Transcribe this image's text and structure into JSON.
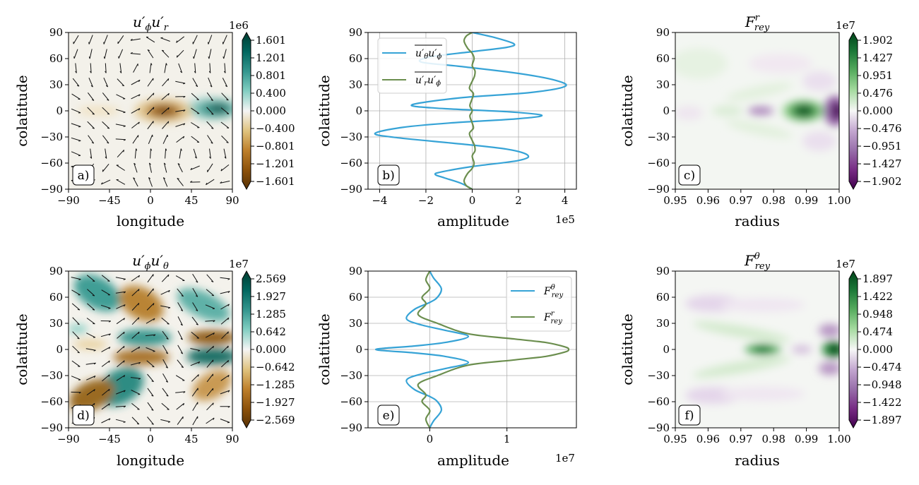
{
  "chart_data": [
    {
      "id": "a",
      "type": "heatmap",
      "panel_label": "a)",
      "title_main": "u′",
      "title_sub1": "ϕ",
      "title_mid": "u′",
      "title_sub2": "r",
      "xlabel": "longitude",
      "ylabel": "colatitude",
      "xlim": [
        -90,
        90
      ],
      "ylim": [
        -90,
        90
      ],
      "xticks": [
        "−90",
        "−45",
        "0",
        "45",
        "90"
      ],
      "xtick_values": [
        -90,
        -45,
        0,
        45,
        90
      ],
      "yticks": [
        "90",
        "60",
        "30",
        "0",
        "−30",
        "−60",
        "−90"
      ],
      "ytick_values": [
        90,
        60,
        30,
        0,
        -30,
        -60,
        -90
      ],
      "colorbar": {
        "multiplier": "1e6",
        "colormap": "BrBG",
        "range": [
          -1.601,
          1.601
        ],
        "ticks": [
          "1.601",
          "1.201",
          "0.801",
          "0.400",
          "0.000",
          "−0.400",
          "−0.801",
          "−1.201",
          "−1.601"
        ],
        "tick_values": [
          1.601,
          1.201,
          0.801,
          0.4,
          0.0,
          -0.4,
          -0.801,
          -1.201,
          -1.601
        ]
      },
      "features": [
        {
          "x": 15,
          "y": 0,
          "value": -1.5
        },
        {
          "x": 75,
          "y": 0,
          "value": 1.5
        }
      ]
    },
    {
      "id": "b",
      "type": "line",
      "panel_label": "b)",
      "xlabel": "amplitude",
      "ylabel": "colatitude",
      "xlim": [
        -4.5,
        4.5
      ],
      "ylim": [
        -90,
        90
      ],
      "x_multiplier": "1e5",
      "xticks": [
        "−4",
        "−2",
        "0",
        "2",
        "4"
      ],
      "xtick_values": [
        -4,
        -2,
        0,
        2,
        4
      ],
      "yticks": [
        "90",
        "60",
        "30",
        "0",
        "−30",
        "−60",
        "−90"
      ],
      "ytick_values": [
        90,
        60,
        30,
        0,
        -30,
        -60,
        -90
      ],
      "grid": true,
      "legend_position": "upper-left",
      "series": [
        {
          "legend_main": "u′",
          "legend_sub1": "θ",
          "legend_mid": "u′",
          "legend_sub2": "ϕ",
          "color": "#36a3d6",
          "points": [
            [
              0,
              90
            ],
            [
              1.0,
              84
            ],
            [
              1.8,
              77
            ],
            [
              1.5,
              73
            ],
            [
              0,
              68
            ],
            [
              -1.8,
              62
            ],
            [
              -2.2,
              56
            ],
            [
              -0.5,
              51
            ],
            [
              2.0,
              43
            ],
            [
              3.6,
              35
            ],
            [
              4.0,
              28
            ],
            [
              2.5,
              21
            ],
            [
              -0.5,
              15
            ],
            [
              -2.6,
              7
            ],
            [
              -1.5,
              3
            ],
            [
              1.5,
              -1
            ],
            [
              3.0,
              -5
            ],
            [
              2.0,
              -9
            ],
            [
              -1.0,
              -14
            ],
            [
              -3.0,
              -19
            ],
            [
              -4.2,
              -26
            ],
            [
              -3.2,
              -31
            ],
            [
              -0.5,
              -38
            ],
            [
              1.5,
              -44
            ],
            [
              2.4,
              -51
            ],
            [
              2.0,
              -57
            ],
            [
              0,
              -64
            ],
            [
              -1.3,
              -70
            ],
            [
              -1.6,
              -73
            ],
            [
              -1.2,
              -77
            ],
            [
              -0.5,
              -83
            ],
            [
              0,
              -90
            ]
          ]
        },
        {
          "legend_main": "u′",
          "legend_sub1": "r",
          "legend_mid": "u′",
          "legend_sub2": "ϕ",
          "color": "#6b8e4e",
          "points": [
            [
              0,
              90
            ],
            [
              -0.25,
              86
            ],
            [
              -0.35,
              80
            ],
            [
              -0.2,
              72
            ],
            [
              0,
              66
            ],
            [
              0.08,
              60
            ],
            [
              0,
              52
            ],
            [
              0.12,
              46
            ],
            [
              0.1,
              40
            ],
            [
              0,
              34
            ],
            [
              -0.12,
              26
            ],
            [
              0.05,
              20
            ],
            [
              0,
              14
            ],
            [
              -0.1,
              6
            ],
            [
              0,
              0
            ],
            [
              -0.1,
              -6
            ],
            [
              0,
              -14
            ],
            [
              0.05,
              -20
            ],
            [
              -0.12,
              -26
            ],
            [
              0,
              -34
            ],
            [
              0.1,
              -40
            ],
            [
              0.12,
              -46
            ],
            [
              0,
              -52
            ],
            [
              0.08,
              -60
            ],
            [
              0,
              -66
            ],
            [
              -0.2,
              -72
            ],
            [
              -0.35,
              -80
            ],
            [
              -0.25,
              -86
            ],
            [
              0,
              -90
            ]
          ]
        }
      ]
    },
    {
      "id": "c",
      "type": "heatmap",
      "panel_label": "c)",
      "title_main": "F",
      "title_sub": "rey",
      "title_sup": "r",
      "xlabel": "radius",
      "ylabel": "colatitude",
      "xlim": [
        0.95,
        1.0
      ],
      "ylim": [
        -90,
        90
      ],
      "xticks": [
        "0.95",
        "0.96",
        "0.97",
        "0.98",
        "0.99",
        "1.00"
      ],
      "xtick_values": [
        0.95,
        0.96,
        0.97,
        0.98,
        0.99,
        1.0
      ],
      "yticks": [
        "90",
        "60",
        "30",
        "0",
        "−30",
        "−60",
        "−90"
      ],
      "ytick_values": [
        90,
        60,
        30,
        0,
        -30,
        -60,
        -90
      ],
      "colorbar": {
        "multiplier": "1e7",
        "colormap": "PRGn",
        "range": [
          -1.902,
          1.902
        ],
        "ticks": [
          "1.902",
          "1.427",
          "0.951",
          "0.476",
          "0.000",
          "−0.476",
          "−0.951",
          "−1.427",
          "−1.902"
        ],
        "tick_values": [
          1.902,
          1.427,
          0.951,
          0.476,
          0.0,
          -0.476,
          -0.951,
          -1.427,
          -1.902
        ]
      },
      "features": [
        {
          "x": 0.989,
          "y": 0,
          "value": 1.8
        },
        {
          "x": 0.976,
          "y": 0,
          "value": -0.7
        },
        {
          "x": 0.999,
          "y": 0,
          "value": -1.9
        }
      ]
    },
    {
      "id": "d",
      "type": "heatmap",
      "panel_label": "d)",
      "title_main": "u′",
      "title_sub1": "ϕ",
      "title_mid": "u′",
      "title_sub2": "θ",
      "xlabel": "longitude",
      "ylabel": "colatitude",
      "xlim": [
        -90,
        90
      ],
      "ylim": [
        -90,
        90
      ],
      "xticks": [
        "−90",
        "−45",
        "0",
        "45",
        "90"
      ],
      "xtick_values": [
        -90,
        -45,
        0,
        45,
        90
      ],
      "yticks": [
        "90",
        "60",
        "30",
        "0",
        "−30",
        "−60",
        "−90"
      ],
      "ytick_values": [
        90,
        60,
        30,
        0,
        -30,
        -60,
        -90
      ],
      "colorbar": {
        "multiplier": "1e7",
        "colormap": "BrBG",
        "range": [
          -2.569,
          2.569
        ],
        "ticks": [
          "2.569",
          "1.927",
          "1.285",
          "0.642",
          "0.000",
          "−0.642",
          "−1.285",
          "−1.927",
          "−2.569"
        ],
        "tick_values": [
          2.569,
          1.927,
          1.285,
          0.642,
          0.0,
          -0.642,
          -1.285,
          -1.927,
          -2.569
        ]
      }
    },
    {
      "id": "e",
      "type": "line",
      "panel_label": "e)",
      "xlabel": "amplitude",
      "ylabel": "colatitude",
      "xlim": [
        -0.8,
        1.9
      ],
      "ylim": [
        -90,
        90
      ],
      "x_multiplier": "1e7",
      "xticks": [
        "0",
        "1"
      ],
      "xtick_values": [
        0,
        1
      ],
      "yticks": [
        "90",
        "60",
        "30",
        "0",
        "−30",
        "−60",
        "−90"
      ],
      "ytick_values": [
        90,
        60,
        30,
        0,
        -30,
        -60,
        -90
      ],
      "grid": true,
      "legend_position": "upper-right",
      "series": [
        {
          "legend_main": "F",
          "legend_sub": "rey",
          "legend_sup": "θ",
          "color": "#36a3d6",
          "points": [
            [
              0,
              90
            ],
            [
              0.05,
              82
            ],
            [
              0.15,
              70
            ],
            [
              0.1,
              60
            ],
            [
              0,
              54
            ],
            [
              -0.2,
              46
            ],
            [
              -0.3,
              35
            ],
            [
              -0.1,
              28
            ],
            [
              0.2,
              22
            ],
            [
              0.5,
              15
            ],
            [
              0.2,
              8
            ],
            [
              -0.2,
              4
            ],
            [
              -0.7,
              0
            ],
            [
              -0.2,
              -4
            ],
            [
              0.2,
              -8
            ],
            [
              0.5,
              -15
            ],
            [
              0.2,
              -22
            ],
            [
              -0.1,
              -28
            ],
            [
              -0.3,
              -35
            ],
            [
              -0.2,
              -46
            ],
            [
              0,
              -54
            ],
            [
              0.1,
              -60
            ],
            [
              0.15,
              -70
            ],
            [
              0.05,
              -82
            ],
            [
              0,
              -90
            ]
          ]
        },
        {
          "legend_main": "F",
          "legend_sub": "rey",
          "legend_sup": "r",
          "color": "#6b8e4e",
          "points": [
            [
              0,
              90
            ],
            [
              -0.05,
              80
            ],
            [
              0,
              70
            ],
            [
              -0.1,
              60
            ],
            [
              -0.05,
              52
            ],
            [
              -0.15,
              40
            ],
            [
              0.1,
              30
            ],
            [
              0.5,
              18
            ],
            [
              1.1,
              12
            ],
            [
              1.5,
              8
            ],
            [
              1.75,
              3
            ],
            [
              1.8,
              0
            ],
            [
              1.75,
              -3
            ],
            [
              1.5,
              -8
            ],
            [
              1.1,
              -12
            ],
            [
              0.5,
              -18
            ],
            [
              0.1,
              -30
            ],
            [
              -0.15,
              -40
            ],
            [
              -0.05,
              -52
            ],
            [
              -0.1,
              -60
            ],
            [
              0,
              -70
            ],
            [
              -0.05,
              -80
            ],
            [
              0,
              -90
            ]
          ]
        }
      ]
    },
    {
      "id": "f",
      "type": "heatmap",
      "panel_label": "f)",
      "title_main": "F",
      "title_sub": "rey",
      "title_sup": "θ",
      "xlabel": "radius",
      "ylabel": "colatitude",
      "xlim": [
        0.95,
        1.0
      ],
      "ylim": [
        -90,
        90
      ],
      "xticks": [
        "0.95",
        "0.96",
        "0.97",
        "0.98",
        "0.99",
        "1.00"
      ],
      "xtick_values": [
        0.95,
        0.96,
        0.97,
        0.98,
        0.99,
        1.0
      ],
      "yticks": [
        "90",
        "60",
        "30",
        "0",
        "−30",
        "−60",
        "−90"
      ],
      "ytick_values": [
        90,
        60,
        30,
        0,
        -30,
        -60,
        -90
      ],
      "colorbar": {
        "multiplier": "1e7",
        "colormap": "PRGn",
        "range": [
          -1.897,
          1.897
        ],
        "ticks": [
          "1.897",
          "1.422",
          "0.948",
          "0.474",
          "0.000",
          "−0.474",
          "−0.948",
          "−1.422",
          "−1.897"
        ],
        "tick_values": [
          1.897,
          1.422,
          0.948,
          0.474,
          0.0,
          -0.474,
          -0.948,
          -1.422,
          -1.897
        ]
      },
      "features": [
        {
          "x": 0.998,
          "y": 0,
          "value": 1.8
        },
        {
          "x": 0.978,
          "y": 0,
          "value": 1.3
        },
        {
          "x": 0.99,
          "y": 0,
          "value": -0.6
        }
      ]
    }
  ]
}
